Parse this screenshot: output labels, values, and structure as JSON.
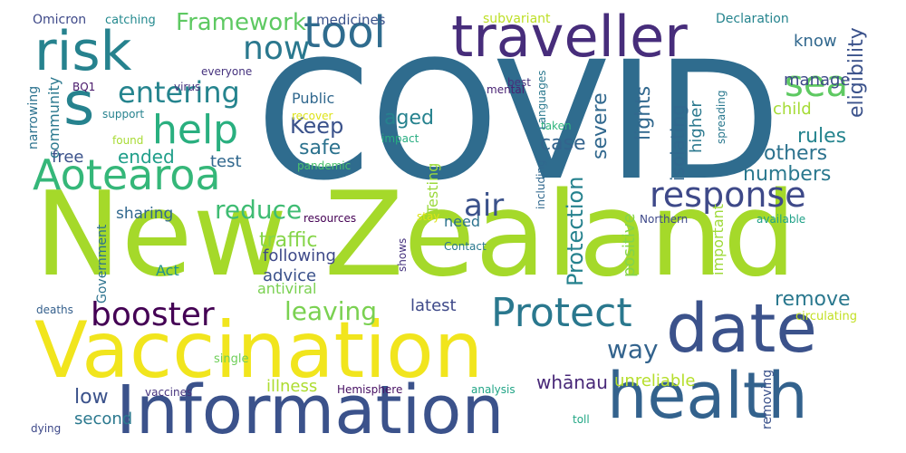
{
  "words": [
    {
      "text": "COVID",
      "color": "#2f6c8e",
      "rot": 0
    },
    {
      "text": "New Zealand",
      "color": "#a5d92a",
      "rot": 0
    },
    {
      "text": "Vaccination",
      "color": "#f1e51d",
      "rot": 0
    },
    {
      "text": "Information",
      "color": "#3b528b",
      "rot": 0
    },
    {
      "text": "health",
      "color": "#33628d",
      "rot": 0
    },
    {
      "text": "date",
      "color": "#3b528b",
      "rot": 0
    },
    {
      "text": "traveller",
      "color": "#472d7b",
      "rot": 0
    },
    {
      "text": "risk",
      "color": "#26828e",
      "rot": 0
    },
    {
      "text": "s",
      "color": "#26828e",
      "rot": 0
    },
    {
      "text": "tool",
      "color": "#2f6c8e",
      "rot": 0
    },
    {
      "text": "Aotearoa",
      "color": "#35b779",
      "rot": 0
    },
    {
      "text": "help",
      "color": "#29af7f",
      "rot": 0
    },
    {
      "text": "entering",
      "color": "#25848e",
      "rot": 0
    },
    {
      "text": "now",
      "color": "#2a788e",
      "rot": 0
    },
    {
      "text": "sea",
      "color": "#5ec962",
      "rot": 0
    },
    {
      "text": "response",
      "color": "#3e4989",
      "rot": 0
    },
    {
      "text": "air",
      "color": "#3b528b",
      "rot": 0
    },
    {
      "text": "Protect",
      "color": "#2a788e",
      "rot": 0
    },
    {
      "text": "booster",
      "color": "#440154",
      "rot": 0
    },
    {
      "text": "leaving",
      "color": "#7ad151",
      "rot": 0
    },
    {
      "text": "reduce",
      "color": "#3fbc73",
      "rot": 0
    },
    {
      "text": "Framework",
      "color": "#5ec962",
      "rot": 0
    },
    {
      "text": "traffic",
      "color": "#86d549",
      "rot": 0
    },
    {
      "text": "way",
      "color": "#33638d",
      "rot": 0
    },
    {
      "text": "remove",
      "color": "#2a788e",
      "rot": 0
    },
    {
      "text": "low",
      "color": "#3b528b",
      "rot": 0
    },
    {
      "text": "second",
      "color": "#2a788e",
      "rot": 0
    },
    {
      "text": "illness",
      "color": "#addc30",
      "rot": 0
    },
    {
      "text": "whānau",
      "color": "#482878",
      "rot": 0
    },
    {
      "text": "unreliable",
      "color": "#b5de2b",
      "rot": 0
    },
    {
      "text": "latest",
      "color": "#3e4989",
      "rot": 0
    },
    {
      "text": "Keep",
      "color": "#3b528b",
      "rot": 0
    },
    {
      "text": "safe",
      "color": "#2c728e",
      "rot": 0
    },
    {
      "text": "aged",
      "color": "#26828e",
      "rot": 0
    },
    {
      "text": "ended",
      "color": "#1f9e89",
      "rot": 0
    },
    {
      "text": "free",
      "color": "#3b528b",
      "rot": 0
    },
    {
      "text": "test",
      "color": "#31688e",
      "rot": 0
    },
    {
      "text": "case",
      "color": "#33638d",
      "rot": 0
    },
    {
      "text": "rules",
      "color": "#25848e",
      "rot": 0
    },
    {
      "text": "others",
      "color": "#2c728e",
      "rot": 0
    },
    {
      "text": "numbers",
      "color": "#2a788e",
      "rot": 0
    },
    {
      "text": "child",
      "color": "#a5db36",
      "rot": 0
    },
    {
      "text": "manage",
      "color": "#3e4989",
      "rot": 0
    },
    {
      "text": "know",
      "color": "#31688e",
      "rot": 0
    },
    {
      "text": "sharing",
      "color": "#31688e",
      "rot": 0
    },
    {
      "text": "following",
      "color": "#3e4989",
      "rot": 0
    },
    {
      "text": "advice",
      "color": "#3b528b",
      "rot": 0
    },
    {
      "text": "antiviral",
      "color": "#7ad151",
      "rot": 0
    },
    {
      "text": "Act",
      "color": "#21918c",
      "rot": 0
    },
    {
      "text": "Public",
      "color": "#31688e",
      "rot": 0
    },
    {
      "text": "medicines",
      "color": "#3b528b",
      "rot": 0
    },
    {
      "text": "Omicron",
      "color": "#3e4989",
      "rot": 0
    },
    {
      "text": "catching",
      "color": "#23898e",
      "rot": 0
    },
    {
      "text": "subvariant",
      "color": "#bddf26",
      "rot": 0
    },
    {
      "text": "Declaration",
      "color": "#25848e",
      "rot": 0
    },
    {
      "text": "everyone",
      "color": "#46327e",
      "rot": 0
    },
    {
      "text": "BQ1",
      "color": "#48186a",
      "rot": 0
    },
    {
      "text": "virus",
      "color": "#46337e",
      "rot": 0
    },
    {
      "text": "best",
      "color": "#46337e",
      "rot": 0
    },
    {
      "text": "mental",
      "color": "#482173",
      "rot": 0
    },
    {
      "text": "recover",
      "color": "#dde318",
      "rot": 0
    },
    {
      "text": "support",
      "color": "#26828e",
      "rot": 0
    },
    {
      "text": "found",
      "color": "#a8db34",
      "rot": 0
    },
    {
      "text": "impact",
      "color": "#27ad81",
      "rot": 0
    },
    {
      "text": "pandemic",
      "color": "#4ac16d",
      "rot": 0
    },
    {
      "text": "taken",
      "color": "#2fb47c",
      "rot": 0
    },
    {
      "text": "resources",
      "color": "#440154",
      "rot": 0
    },
    {
      "text": "stay",
      "color": "#dde318",
      "rot": 0
    },
    {
      "text": "Northern",
      "color": "#3e4989",
      "rot": 0
    },
    {
      "text": "available",
      "color": "#1fa187",
      "rot": 0
    },
    {
      "text": "deaths",
      "color": "#35608d",
      "rot": 0
    },
    {
      "text": "single",
      "color": "#6ece58",
      "rot": 0
    },
    {
      "text": "vaccines",
      "color": "#46337e",
      "rot": 0
    },
    {
      "text": "dying",
      "color": "#3e4989",
      "rot": 0
    },
    {
      "text": "Hemisphere",
      "color": "#471063",
      "rot": 0
    },
    {
      "text": "analysis",
      "color": "#20a486",
      "rot": 0
    },
    {
      "text": "Contact",
      "color": "#2a788e",
      "rot": 0
    },
    {
      "text": "toll",
      "color": "#22a785",
      "rot": 0
    },
    {
      "text": "circulating",
      "color": "#c2df23",
      "rot": 0
    },
    {
      "text": "need",
      "color": "#2c728e",
      "rot": 0
    },
    {
      "text": "eligibility",
      "color": "#3b528b",
      "rot": -90
    },
    {
      "text": "lights",
      "color": "#31688e",
      "rot": -90
    },
    {
      "text": "severe",
      "color": "#31688e",
      "rot": -90
    },
    {
      "text": "isolating",
      "color": "#31688e",
      "rot": -90
    },
    {
      "text": "higher",
      "color": "#2a788e",
      "rot": -90
    },
    {
      "text": "Protection",
      "color": "#26828e",
      "rot": -90
    },
    {
      "text": "Testing",
      "color": "#9bd93c",
      "rot": -90
    },
    {
      "text": "positive",
      "color": "#84d44b",
      "rot": -90
    },
    {
      "text": "important",
      "color": "#9fda3a",
      "rot": -90
    },
    {
      "text": "removing",
      "color": "#3b528b",
      "rot": -90
    },
    {
      "text": "community",
      "color": "#2a788e",
      "rot": -90
    },
    {
      "text": "narrowing",
      "color": "#2c728e",
      "rot": -90
    },
    {
      "text": "Government",
      "color": "#2c728e",
      "rot": -90
    },
    {
      "text": "shows",
      "color": "#46337e",
      "rot": -90
    },
    {
      "text": "including",
      "color": "#31688e",
      "rot": -90
    },
    {
      "text": "Languages",
      "color": "#2a788e",
      "rot": -90
    },
    {
      "text": "spreading",
      "color": "#2a788e",
      "rot": -90
    },
    {
      "text": "spreading ",
      "color": "#2a788e",
      "rot": -90
    }
  ]
}
